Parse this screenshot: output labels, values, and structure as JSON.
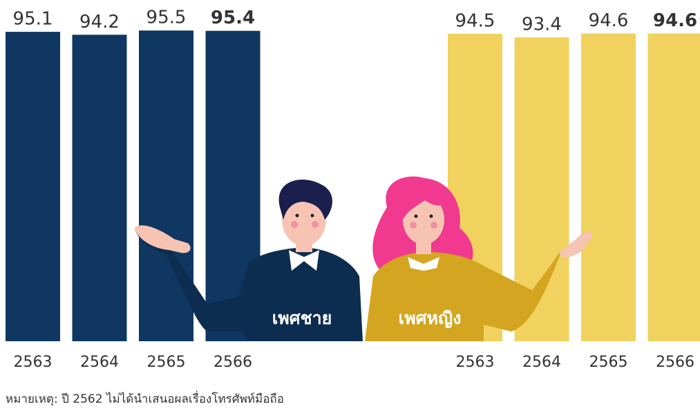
{
  "chart_data": {
    "type": "bar",
    "categories": [
      "2563",
      "2564",
      "2565",
      "2566"
    ],
    "series": [
      {
        "name": "เพศชาย",
        "color": "#0f3762",
        "values": [
          95.1,
          94.2,
          95.5,
          95.4
        ]
      },
      {
        "name": "เพศหญิง",
        "color": "#f2d25e",
        "values": [
          94.5,
          93.4,
          94.6,
          94.6
        ]
      }
    ],
    "ylim": [
      0,
      100
    ],
    "note": "หมายเหตุ: ปี 2562 ไม่ได้นำเสนอผลเรื่องโทรศัพท์มือถือ"
  }
}
